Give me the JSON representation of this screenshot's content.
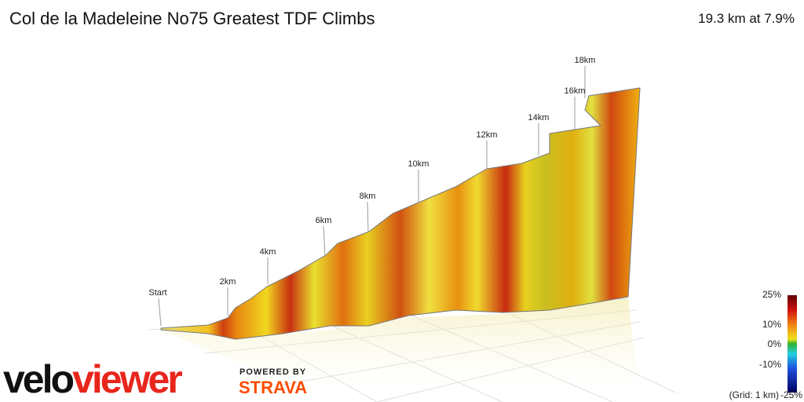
{
  "header": {
    "title": "Col de la Madeleine No75 Greatest TDF Climbs",
    "summary": "19.3 km at 7.9%"
  },
  "markers": [
    "Start",
    "2km",
    "4km",
    "6km",
    "8km",
    "10km",
    "12km",
    "14km",
    "16km",
    "18km"
  ],
  "scale": {
    "labels": [
      "25%",
      "10%",
      "0%",
      "-10%",
      "-25%"
    ],
    "grid_note": "(Grid: 1 km)"
  },
  "branding": {
    "velo": "velo",
    "viewer": "viewer",
    "powered_by": "POWERED BY",
    "strava": "STRAVA"
  }
}
